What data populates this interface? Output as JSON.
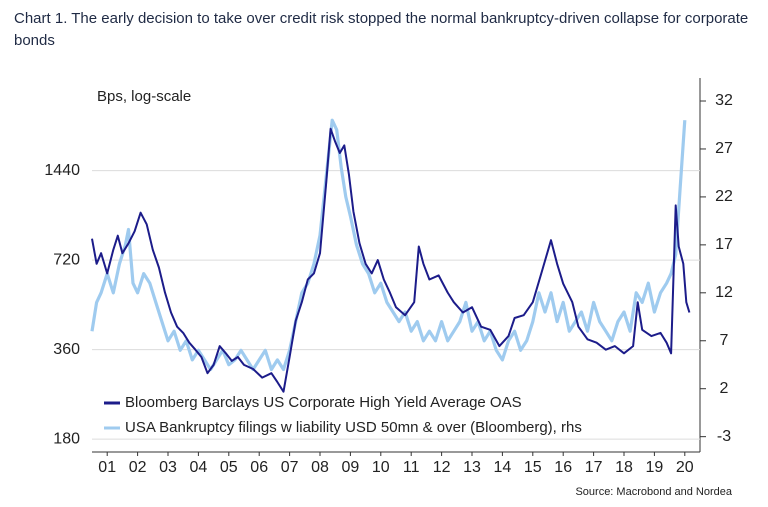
{
  "chart_data": {
    "type": "line",
    "title": "Chart 1. The early decision to take over credit risk stopped the normal bankruptcy-driven collapse for corporate bonds",
    "y_label": "Bps, log-scale",
    "source": "Source: Macrobond and Nordea",
    "log_scale": true,
    "grid": true,
    "legend": "lower left",
    "xlim": [
      2001,
      2021
    ],
    "xticks": [
      {
        "value": 2001.5,
        "label": "01"
      },
      {
        "value": 2002.5,
        "label": "02"
      },
      {
        "value": 2003.5,
        "label": "03"
      },
      {
        "value": 2004.5,
        "label": "04"
      },
      {
        "value": 2005.5,
        "label": "05"
      },
      {
        "value": 2006.5,
        "label": "06"
      },
      {
        "value": 2007.5,
        "label": "07"
      },
      {
        "value": 2008.5,
        "label": "08"
      },
      {
        "value": 2009.5,
        "label": "09"
      },
      {
        "value": 2010.5,
        "label": "10"
      },
      {
        "value": 2011.5,
        "label": "11"
      },
      {
        "value": 2012.5,
        "label": "12"
      },
      {
        "value": 2013.5,
        "label": "13"
      },
      {
        "value": 2014.5,
        "label": "14"
      },
      {
        "value": 2015.5,
        "label": "15"
      },
      {
        "value": 2016.5,
        "label": "16"
      },
      {
        "value": 2017.5,
        "label": "17"
      },
      {
        "value": 2018.5,
        "label": "18"
      },
      {
        "value": 2019.5,
        "label": "19"
      },
      {
        "value": 2020.5,
        "label": "20"
      }
    ],
    "ylim": [
      163,
      2950
    ],
    "yticks": [
      180,
      360,
      720,
      1440
    ],
    "y2lim": [
      -4.6,
      34.4
    ],
    "y2ticks": [
      -3,
      2,
      7,
      12,
      17,
      22,
      27,
      32
    ],
    "series": [
      {
        "name": "USA Bankruptcy filings w liability USD 50mn & over (Bloomberg), rhs",
        "color": "#9fcbef",
        "axis": "y2",
        "x": [
          2001.0,
          2001.15,
          2001.3,
          2001.5,
          2001.7,
          2001.9,
          2002.1,
          2002.2,
          2002.35,
          2002.5,
          2002.7,
          2002.9,
          2003.1,
          2003.3,
          2003.5,
          2003.7,
          2003.9,
          2004.1,
          2004.3,
          2004.5,
          2004.7,
          2004.9,
          2005.1,
          2005.3,
          2005.5,
          2005.7,
          2005.9,
          2006.1,
          2006.3,
          2006.5,
          2006.7,
          2006.9,
          2007.1,
          2007.3,
          2007.5,
          2007.7,
          2007.9,
          2008.1,
          2008.3,
          2008.5,
          2008.7,
          2008.9,
          2009.05,
          2009.2,
          2009.35,
          2009.5,
          2009.7,
          2009.9,
          2010.1,
          2010.3,
          2010.5,
          2010.7,
          2010.9,
          2011.1,
          2011.3,
          2011.5,
          2011.7,
          2011.9,
          2012.1,
          2012.3,
          2012.5,
          2012.7,
          2012.9,
          2013.1,
          2013.3,
          2013.5,
          2013.7,
          2013.9,
          2014.1,
          2014.3,
          2014.5,
          2014.7,
          2014.9,
          2015.1,
          2015.3,
          2015.5,
          2015.7,
          2015.9,
          2016.1,
          2016.3,
          2016.5,
          2016.7,
          2016.9,
          2017.1,
          2017.3,
          2017.5,
          2017.7,
          2017.9,
          2018.1,
          2018.3,
          2018.5,
          2018.7,
          2018.9,
          2019.1,
          2019.3,
          2019.5,
          2019.7,
          2019.9,
          2020.05,
          2020.2,
          2020.35,
          2020.5
        ],
        "values": [
          8,
          11,
          12,
          14,
          12,
          15,
          17,
          18.6,
          13,
          12,
          14,
          13,
          11,
          9,
          7,
          8,
          6,
          7,
          5,
          6,
          5,
          4,
          5,
          6,
          4.5,
          5,
          6,
          5,
          4,
          5,
          6,
          4,
          5,
          4,
          6,
          9,
          12,
          13,
          15,
          18,
          24,
          30,
          29,
          25,
          22,
          20,
          17,
          15,
          14,
          12,
          13,
          11,
          10,
          9,
          10,
          8,
          9,
          7,
          8,
          7,
          9,
          7,
          8,
          9,
          11,
          8,
          9,
          7,
          8,
          6,
          5,
          7,
          8,
          6,
          7,
          9,
          12,
          10,
          12,
          9,
          11,
          8,
          9,
          10,
          8,
          11,
          9,
          8,
          7,
          9,
          10,
          8,
          12,
          11,
          13,
          10,
          12,
          13,
          14,
          16,
          23,
          30
        ]
      },
      {
        "name": "Bloomberg Barclays US Corporate High Yield Average OAS",
        "color": "#1c1c8a",
        "axis": "y",
        "x": [
          2001.0,
          2001.15,
          2001.3,
          2001.5,
          2001.7,
          2001.85,
          2002.0,
          2002.2,
          2002.4,
          2002.6,
          2002.8,
          2003.0,
          2003.2,
          2003.4,
          2003.6,
          2003.8,
          2004.0,
          2004.2,
          2004.4,
          2004.6,
          2004.8,
          2005.0,
          2005.2,
          2005.4,
          2005.6,
          2005.8,
          2006.0,
          2006.3,
          2006.6,
          2006.9,
          2007.1,
          2007.3,
          2007.5,
          2007.7,
          2007.9,
          2008.1,
          2008.3,
          2008.5,
          2008.7,
          2008.85,
          2009.0,
          2009.15,
          2009.3,
          2009.45,
          2009.6,
          2009.8,
          2010.0,
          2010.2,
          2010.4,
          2010.6,
          2010.8,
          2011.0,
          2011.3,
          2011.6,
          2011.75,
          2011.9,
          2012.1,
          2012.4,
          2012.7,
          2012.9,
          2013.2,
          2013.5,
          2013.8,
          2014.1,
          2014.4,
          2014.7,
          2014.9,
          2015.2,
          2015.5,
          2015.8,
          2016.1,
          2016.3,
          2016.5,
          2016.8,
          2017.0,
          2017.3,
          2017.6,
          2017.9,
          2018.2,
          2018.5,
          2018.8,
          2018.95,
          2019.1,
          2019.4,
          2019.7,
          2019.9,
          2020.05,
          2020.2,
          2020.3,
          2020.45,
          2020.55,
          2020.65
        ],
        "values": [
          850,
          700,
          760,
          650,
          780,
          870,
          760,
          820,
          900,
          1040,
          950,
          780,
          680,
          560,
          480,
          430,
          410,
          380,
          360,
          340,
          300,
          320,
          370,
          350,
          330,
          340,
          320,
          310,
          290,
          300,
          280,
          260,
          340,
          450,
          520,
          620,
          650,
          760,
          1300,
          1990,
          1800,
          1650,
          1750,
          1400,
          1050,
          820,
          700,
          650,
          720,
          620,
          560,
          500,
          470,
          520,
          800,
          700,
          620,
          640,
          560,
          520,
          480,
          500,
          430,
          420,
          370,
          400,
          460,
          470,
          520,
          660,
          840,
          700,
          600,
          520,
          430,
          390,
          380,
          360,
          370,
          350,
          370,
          520,
          420,
          400,
          410,
          380,
          350,
          1100,
          800,
          700,
          520,
          480
        ]
      }
    ]
  }
}
